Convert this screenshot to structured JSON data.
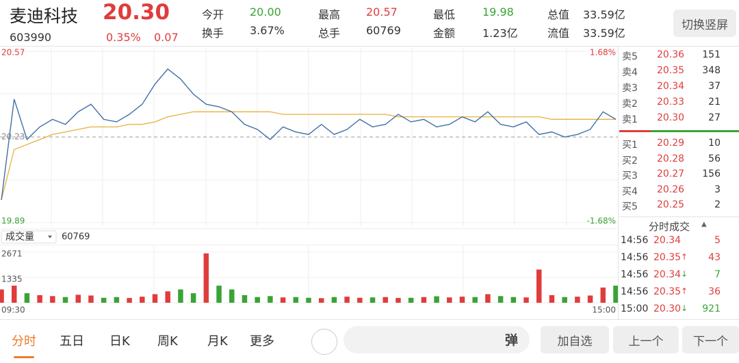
{
  "header": {
    "name": "麦迪科技",
    "price": "20.30",
    "code": "603990",
    "change_pct": "0.35%",
    "change": "0.07",
    "button": "切换竖屏"
  },
  "stats": [
    {
      "label": "今开",
      "value": "20.00",
      "color": "#3aa335"
    },
    {
      "label": "换手",
      "value": "3.67%",
      "color": "#333333"
    },
    {
      "label": "最高",
      "value": "20.57",
      "color": "#e03c3c"
    },
    {
      "label": "总手",
      "value": "60769",
      "color": "#333333"
    },
    {
      "label": "最低",
      "value": "19.98",
      "color": "#3aa335"
    },
    {
      "label": "金额",
      "value": "1.23亿",
      "color": "#333333"
    },
    {
      "label": "总值",
      "value": "33.59亿",
      "color": "#333333"
    },
    {
      "label": "流值",
      "value": "33.59亿",
      "color": "#333333"
    }
  ],
  "order_book": {
    "price_color": "#e03c3c",
    "asks": [
      {
        "label": "卖5",
        "price": "20.36",
        "volume": "151"
      },
      {
        "label": "卖4",
        "price": "20.35",
        "volume": "348"
      },
      {
        "label": "卖3",
        "price": "20.34",
        "volume": "37"
      },
      {
        "label": "卖2",
        "price": "20.33",
        "volume": "21"
      },
      {
        "label": "卖1",
        "price": "20.30",
        "volume": "27"
      }
    ],
    "bids": [
      {
        "label": "买1",
        "price": "20.29",
        "volume": "10"
      },
      {
        "label": "买2",
        "price": "20.28",
        "volume": "56"
      },
      {
        "label": "买3",
        "price": "20.27",
        "volume": "156"
      },
      {
        "label": "买4",
        "price": "20.26",
        "volume": "3"
      },
      {
        "label": "买5",
        "price": "20.25",
        "volume": "2"
      }
    ]
  },
  "trades": {
    "title": "分时成交",
    "rows": [
      {
        "time": "14:56",
        "price": "20.34",
        "volume": "5",
        "color": "#e03c3c"
      },
      {
        "time": "14:56",
        "price": "20.35",
        "arrow": "↑",
        "volume": "43",
        "color": "#e03c3c"
      },
      {
        "time": "14:56",
        "price": "20.34",
        "arrow": "↓",
        "volume": "7",
        "color": "#3aa335"
      },
      {
        "time": "14:56",
        "price": "20.35",
        "arrow": "↑",
        "volume": "36",
        "color": "#e03c3c"
      },
      {
        "time": "15:00",
        "price": "20.30",
        "arrow": "↓",
        "volume": "921",
        "color": "#3aa335"
      }
    ]
  },
  "volume_panel": {
    "label": "成交量",
    "total": "60769"
  },
  "tabs": [
    "分时",
    "五日",
    "日K",
    "周K",
    "月K",
    "更多"
  ],
  "input_icon": "弹",
  "buttons": [
    "加自选",
    "上一个",
    "下一个"
  ],
  "chart_data": [
    {
      "type": "line",
      "categories": [
        "09:30",
        null,
        null,
        null,
        null,
        null,
        null,
        null,
        null,
        null,
        null,
        null,
        null,
        null,
        null,
        null,
        null,
        null,
        null,
        null,
        null,
        null,
        null,
        null,
        null,
        null,
        null,
        null,
        null,
        null,
        null,
        null,
        null,
        null,
        null,
        null,
        null,
        null,
        null,
        null,
        null,
        null,
        null,
        null,
        null,
        null,
        null,
        null,
        "15:00"
      ],
      "series": [
        {
          "color": "#3f6fa8",
          "values": [
            19.98,
            20.38,
            20.22,
            20.27,
            20.3,
            20.28,
            20.33,
            20.36,
            20.3,
            20.29,
            20.32,
            20.36,
            20.44,
            20.5,
            20.46,
            20.4,
            20.36,
            20.35,
            20.33,
            20.28,
            20.26,
            20.22,
            20.27,
            20.25,
            20.24,
            20.28,
            20.24,
            20.26,
            20.3,
            20.27,
            20.28,
            20.32,
            20.29,
            20.3,
            20.27,
            20.28,
            20.31,
            20.29,
            20.33,
            20.28,
            20.27,
            20.29,
            20.24,
            20.25,
            20.23,
            20.24,
            20.26,
            20.33,
            20.3
          ]
        },
        {
          "color": "#e8b64a",
          "values": [
            19.98,
            20.18,
            20.2,
            20.22,
            20.24,
            20.25,
            20.26,
            20.27,
            20.27,
            20.27,
            20.28,
            20.28,
            20.29,
            20.31,
            20.32,
            20.33,
            20.33,
            20.33,
            20.33,
            20.33,
            20.33,
            20.33,
            20.32,
            20.32,
            20.32,
            20.32,
            20.32,
            20.32,
            20.32,
            20.32,
            20.32,
            20.31,
            20.31,
            20.31,
            20.31,
            20.31,
            20.31,
            20.31,
            20.31,
            20.31,
            20.31,
            20.31,
            20.31,
            20.3,
            20.3,
            20.3,
            20.3,
            20.3,
            20.3
          ]
        }
      ],
      "ylim": [
        19.89,
        20.57
      ],
      "yticks": [
        19.89,
        20.23,
        20.57
      ],
      "y2lim": [
        -1.68,
        1.68
      ],
      "y2ticks": [
        {
          "value": -1.68,
          "label": "-1.68%"
        },
        {
          "value": 1.68,
          "label": "1.68%"
        }
      ],
      "up_color": "#e03c3c",
      "down_color": "#3aa335",
      "grid": true
    },
    {
      "type": "bar",
      "values": [
        700,
        900,
        500,
        400,
        350,
        300,
        420,
        380,
        260,
        300,
        250,
        320,
        450,
        600,
        700,
        500,
        2600,
        900,
        700,
        400,
        300,
        350,
        280,
        300,
        260,
        240,
        300,
        320,
        260,
        280,
        300,
        250,
        260,
        300,
        340,
        280,
        320,
        300,
        450,
        350,
        300,
        280,
        1750,
        400,
        300,
        320,
        380,
        800,
        900
      ],
      "colors": [
        "#e03c3c",
        "#e03c3c",
        "#3aa335",
        "#e03c3c",
        "#e03c3c",
        "#3aa335",
        "#e03c3c",
        "#e03c3c",
        "#3aa335",
        "#3aa335",
        "#e03c3c",
        "#e03c3c",
        "#e03c3c",
        "#e03c3c",
        "#3aa335",
        "#3aa335",
        "#e03c3c",
        "#3aa335",
        "#3aa335",
        "#3aa335",
        "#3aa335",
        "#3aa335",
        "#e03c3c",
        "#3aa335",
        "#3aa335",
        "#e03c3c",
        "#3aa335",
        "#e03c3c",
        "#e03c3c",
        "#3aa335",
        "#e03c3c",
        "#e03c3c",
        "#3aa335",
        "#e03c3c",
        "#3aa335",
        "#e03c3c",
        "#e03c3c",
        "#3aa335",
        "#e03c3c",
        "#3aa335",
        "#3aa335",
        "#e03c3c",
        "#e03c3c",
        "#e03c3c",
        "#3aa335",
        "#e03c3c",
        "#e03c3c",
        "#e03c3c",
        "#3aa335"
      ],
      "ylim": [
        0,
        2671
      ],
      "yticks": [
        1335,
        2671
      ]
    }
  ]
}
